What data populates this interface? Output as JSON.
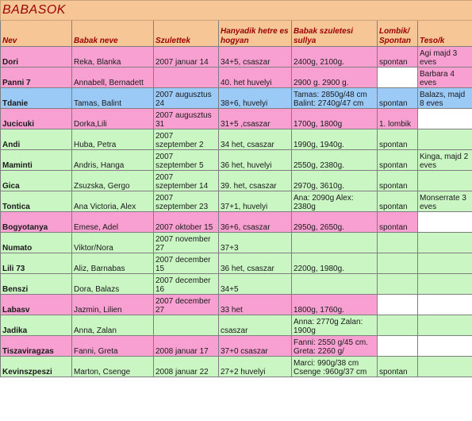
{
  "title": "BABASOK",
  "headers": {
    "nev": "Nev",
    "babak_neve": "Babak neve",
    "szulettek": "Szulettek",
    "hanyadik": "Hanyadik hetre es hogyan",
    "suly": "Babak szuletesi sullya",
    "lombik": "Lombik/ Spontan",
    "teso": "Teso/k"
  },
  "row_colors": {
    "pink": "#f9a0d2",
    "green": "#c9f6c3",
    "blue": "#9ccaf7",
    "header": "#f6c696",
    "title_text": "#9a0000"
  },
  "rows": [
    {
      "color": "pink",
      "nev": "Dori",
      "babak": "Reka, Blanka",
      "szulettek": "2007 januar 14",
      "het": "34+5, csaszar",
      "suly": "2400g, 2100g.",
      "lombik": "spontan",
      "teso": "Agi majd 3 eves"
    },
    {
      "color": "pink",
      "nev": "Panni 7",
      "babak": "Annabell, Bernadett",
      "szulettek": "",
      "het": "40. het huvelyi",
      "suly": "2900 g. 2900 g.",
      "lombik": "",
      "teso": "Barbara 4 eves"
    },
    {
      "color": "blue",
      "nev": "Tdanie",
      "babak": "Tamas, Balint",
      "szulettek": "2007 augusztus 24",
      "het": "38+6, huvelyi",
      "suly": "Tamas: 2850g/48 cm Balint: 2740g/47 cm",
      "lombik": "spontan",
      "teso": "Balazs, majd 8 eves"
    },
    {
      "color": "pink",
      "nev": "Jucicuki",
      "babak": "Dorka,Lili",
      "szulettek": "2007 augusztus 31",
      "het": "31+5 ,csaszar",
      "suly": "1700g, 1800g",
      "lombik": "1. lombik",
      "teso": ""
    },
    {
      "color": "green",
      "nev": "Andi",
      "babak": "Huba, Petra",
      "szulettek": "2007 szeptember 2",
      "het": "34 het, csaszar",
      "suly": "1990g, 1940g.",
      "lombik": "spontan",
      "teso": ""
    },
    {
      "color": "green",
      "nev": "Maminti",
      "babak": "Andris, Hanga",
      "szulettek": "2007 szeptember 5",
      "het": "36 het, huvelyi",
      "suly": "2550g, 2380g.",
      "lombik": "spontan",
      "teso": "Kinga, majd 2 eves"
    },
    {
      "color": "green",
      "nev": "Gica",
      "babak": "Zsuzska, Gergo",
      "szulettek": "2007 szeptember 14",
      "het": "39. het, csaszar",
      "suly": "2970g, 3610g.",
      "lombik": "spontan",
      "teso": ""
    },
    {
      "color": "green",
      "nev": "Tontica",
      "babak": "Ana Victoria, Alex",
      "szulettek": "2007 szeptember 23",
      "het": "37+1, huvelyi",
      "suly": "Ana: 2090g Alex: 2380g",
      "lombik": "spontan",
      "teso": "Monserrate 3 eves"
    },
    {
      "color": "pink",
      "nev": "Bogyotanya",
      "babak": "Emese, Adel",
      "szulettek": "2007 oktober 15",
      "het": "36+6, csaszar",
      "suly": "2950g, 2650g.",
      "lombik": "spontan",
      "teso": ""
    },
    {
      "color": "green",
      "nev": "Numato",
      "babak": "Viktor/Nora",
      "szulettek": "2007 november 27",
      "het": "37+3",
      "suly": "",
      "lombik": "",
      "teso": ""
    },
    {
      "color": "green",
      "nev": "Lili 73",
      "babak": "Aliz, Barnabas",
      "szulettek": "2007 december 15",
      "het": "36 het, csaszar",
      "suly": "2200g, 1980g.",
      "lombik": "",
      "teso": ""
    },
    {
      "color": "green",
      "nev": "Benszi",
      "babak": "Dora, Balazs",
      "szulettek": "2007 december 16",
      "het": "34+5",
      "suly": "",
      "lombik": "",
      "teso": ""
    },
    {
      "color": "pink",
      "nev": "Labasv",
      "babak": "Jazmin, Lilien",
      "szulettek": "2007 december 27",
      "het": "33 het",
      "suly": "1800g, 1760g.",
      "lombik": "",
      "teso": ""
    },
    {
      "color": "green",
      "nev": "Jadika",
      "babak": "Anna, Zalan",
      "szulettek": "",
      "het": "csaszar",
      "suly": "Anna: 2770g Zalan: 1900g",
      "lombik": "",
      "teso": ""
    },
    {
      "color": "pink",
      "nev": "Tiszaviragzas",
      "babak": "Fanni, Greta",
      "szulettek": "2008 januar 17",
      "het": "37+0 csaszar",
      "suly": "Fanni: 2550 g/45 cm. Greta: 2260 g/",
      "lombik": "",
      "teso": ""
    },
    {
      "color": "green",
      "nev": "Kevinszpeszi",
      "babak": "Marton, Csenge",
      "szulettek": "2008 januar 22",
      "het": "27+2 huvelyi",
      "suly": "Marci: 990g/38 cm Csenge :960g/37 cm",
      "lombik": "spontan",
      "teso": ""
    }
  ]
}
